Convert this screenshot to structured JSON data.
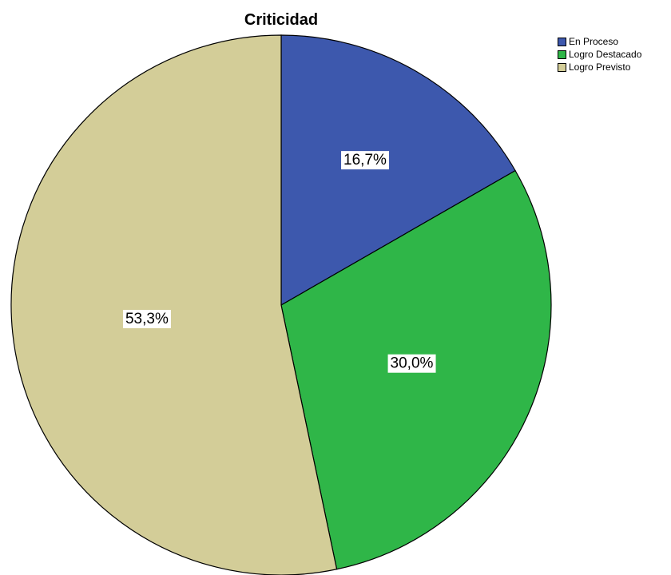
{
  "chart_data": {
    "type": "pie",
    "title": "Criticidad",
    "categories": [
      "En Proceso",
      "Logro Destacado",
      "Logro Previsto"
    ],
    "values": [
      16.7,
      30.0,
      53.3
    ],
    "labels": [
      "16,7%",
      "30,0%",
      "53,3%"
    ],
    "colors": [
      "#3d58ad",
      "#2fb648",
      "#d3cd98"
    ],
    "legend_position": "top-right",
    "start_angle": "12 o'clock",
    "direction": "clockwise"
  }
}
